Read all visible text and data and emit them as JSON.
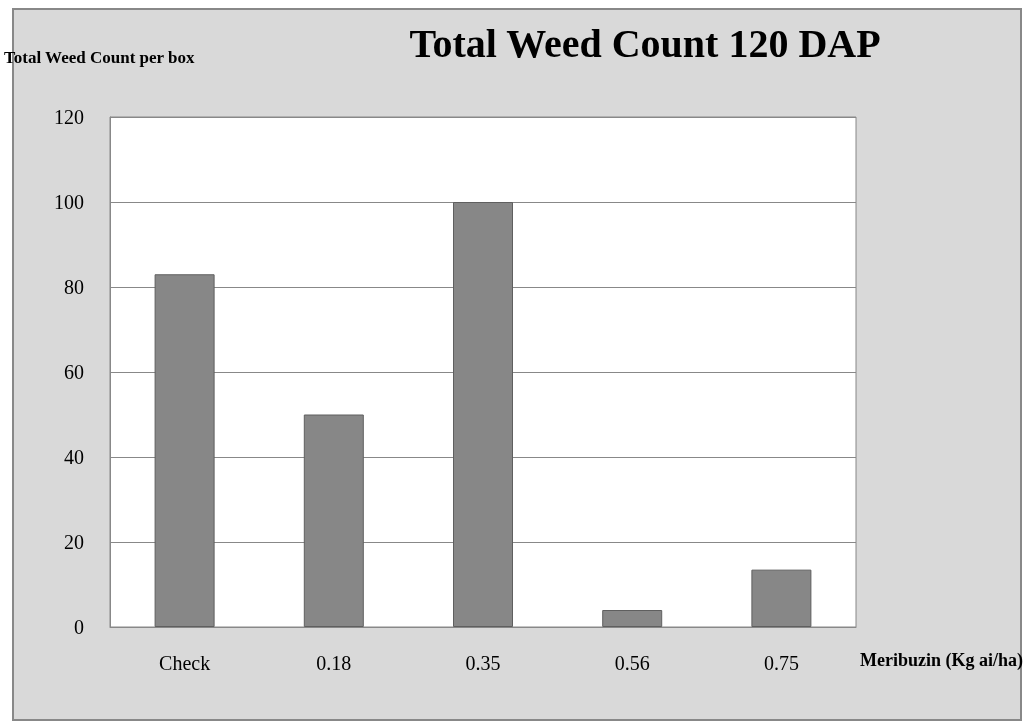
{
  "chart_data": {
    "type": "bar",
    "title": "Total Weed Count 120 DAP",
    "xlabel": "Meribuzin (Kg ai/ha)",
    "ylabel": "Total Weed Count per box",
    "categories": [
      "Check",
      "0.18",
      "0.35",
      "0.56",
      "0.75"
    ],
    "values": [
      83,
      50,
      100,
      4,
      13.5
    ],
    "color": "#878787",
    "ylim": [
      0,
      120
    ],
    "yticks": [
      0,
      20,
      40,
      60,
      80,
      100,
      120
    ],
    "grid": "y"
  }
}
